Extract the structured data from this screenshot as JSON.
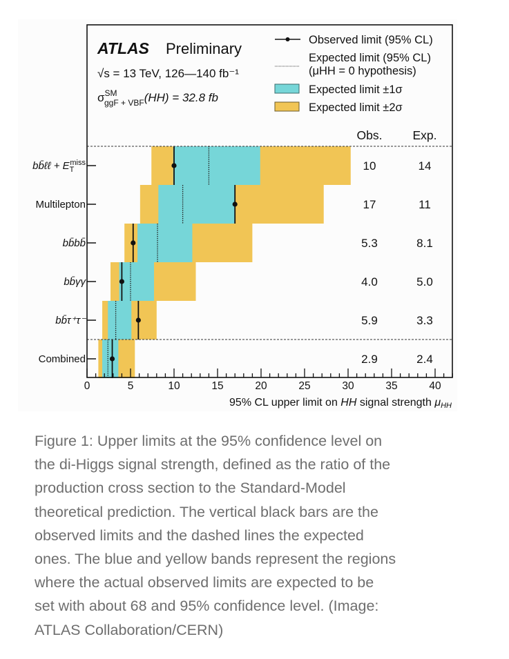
{
  "chart_data": {
    "type": "bar",
    "subtype": "limit-plot",
    "title": "ATLAS",
    "title_suffix": "Preliminary",
    "energy_label": "√s = 13 TeV, 126—140 fb⁻¹",
    "xsec_label": {
      "sigma": "σ",
      "sup": "SM",
      "sub": "ggF + VBF",
      "rest": "(HH) = 32.8 fb"
    },
    "xlabel": "95% CL upper limit on HH signal strength μHH",
    "xlabel_parts": {
      "prefix": "95% CL upper limit on ",
      "hh": "HH",
      "mid": " signal strength ",
      "mu": "μ",
      "mu_sub": "HH"
    },
    "xlim": [
      0,
      42
    ],
    "xticks": [
      0,
      5,
      10,
      15,
      20,
      25,
      30,
      35,
      40
    ],
    "xtick_labels": [
      "0",
      "5",
      "10",
      "15",
      "20",
      "25",
      "30",
      "35",
      "40"
    ],
    "grid": false,
    "legend_position": "top-right",
    "legend": [
      {
        "key": "observed",
        "label": "Observed limit (95% CL)"
      },
      {
        "key": "expected",
        "label": "Expected limit (95% CL)",
        "label2": "(μHH = 0 hypothesis)"
      },
      {
        "key": "band1",
        "label": "Expected limit ±1σ"
      },
      {
        "key": "band2",
        "label": "Expected limit ±2σ"
      }
    ],
    "column_headers": {
      "obs": "Obs.",
      "exp": "Exp."
    },
    "categories": [
      "bb̄ℓℓ + E_T^miss",
      "Multilepton",
      "bb̄bb̄",
      "bb̄γγ",
      "bb̄τ⁺τ⁻",
      "Combined"
    ],
    "category_labels": [
      {
        "main": "bb̄ℓℓ + E",
        "sub": "T",
        "sup": "miss"
      },
      {
        "main": "Multilepton"
      },
      {
        "main": "bb̄bb̄"
      },
      {
        "main": "bb̄γγ"
      },
      {
        "main": "bb̄τ⁺τ⁻"
      },
      {
        "main": "Combined"
      }
    ],
    "series": [
      {
        "name": "Observed",
        "values": [
          10,
          17,
          5.3,
          4.0,
          5.9,
          2.9
        ]
      },
      {
        "name": "Expected",
        "values": [
          14,
          11,
          8.1,
          5.0,
          3.3,
          2.4
        ]
      },
      {
        "name": "Expected ±1σ",
        "low": [
          9.9,
          8.2,
          5.8,
          3.7,
          2.4,
          1.75
        ],
        "high": [
          19.9,
          17.0,
          12.1,
          7.7,
          5.1,
          3.6
        ]
      },
      {
        "name": "Expected ±2σ",
        "low": [
          7.4,
          6.1,
          4.3,
          2.7,
          1.75,
          1.3
        ],
        "high": [
          30.3,
          27.2,
          19.0,
          12.5,
          8.0,
          5.5
        ]
      }
    ],
    "obs_text": [
      "10",
      "17",
      "5.3",
      "4.0",
      "5.9",
      "2.9"
    ],
    "exp_text": [
      "14",
      "11",
      "8.1",
      "5.0",
      "3.3",
      "2.4"
    ],
    "colors": {
      "band1": "#76d6d8",
      "band2": "#f1c555",
      "line": "#111111"
    }
  },
  "caption": {
    "lines": [
      "Figure 1: Upper limits at the 95% confidence level on",
      "the di-Higgs signal strength, defined as the ratio of the",
      "production cross section to the Standard-Model",
      "theoretical prediction. The vertical black bars are the",
      "observed limits and the dashed lines the expected",
      "ones. The blue and yellow bands represent the regions",
      "where the actual observed limits are expected to be",
      "set with about 68 and 95% confidence level. (Image:",
      "ATLAS Collaboration/CERN)"
    ]
  }
}
